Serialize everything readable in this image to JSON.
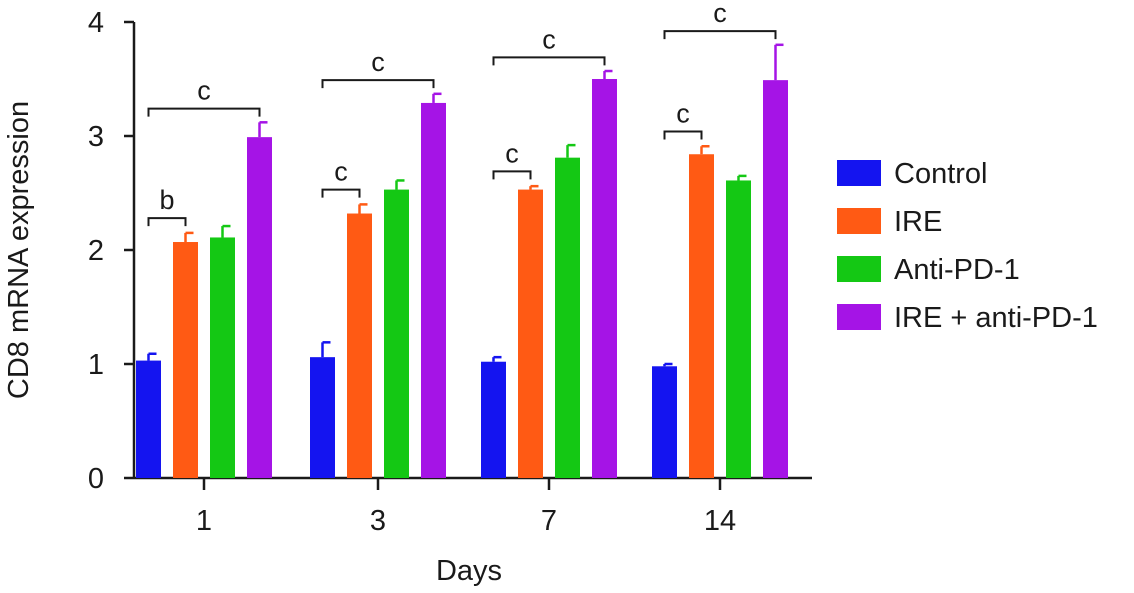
{
  "chart_data": {
    "type": "bar",
    "xlabel": "Days",
    "ylabel": "CD8 mRNA expression",
    "ylim": [
      0,
      4
    ],
    "yticks": [
      "0",
      "1",
      "2",
      "3",
      "4"
    ],
    "categories": [
      "1",
      "3",
      "7",
      "14"
    ],
    "series": [
      {
        "name": "Control",
        "color": "#1414f0",
        "values": [
          1.03,
          1.06,
          1.02,
          0.98
        ],
        "errors": [
          0.06,
          0.13,
          0.04,
          0.02
        ]
      },
      {
        "name": "IRE",
        "color": "#ff5a14",
        "values": [
          2.07,
          2.32,
          2.53,
          2.84
        ],
        "errors": [
          0.08,
          0.08,
          0.03,
          0.07
        ]
      },
      {
        "name": "Anti-PD-1",
        "color": "#14c814",
        "values": [
          2.11,
          2.53,
          2.81,
          2.61
        ],
        "errors": [
          0.1,
          0.08,
          0.11,
          0.04
        ]
      },
      {
        "name": "IRE + anti-PD-1",
        "color": "#a514e6",
        "values": [
          2.99,
          3.29,
          3.5,
          3.49
        ],
        "errors": [
          0.13,
          0.08,
          0.07,
          0.31
        ]
      }
    ],
    "significance": [
      {
        "category": 0,
        "from_series": 0,
        "to_series": 1,
        "label": "b"
      },
      {
        "category": 0,
        "from_series": 0,
        "to_series": 3,
        "label": "c"
      },
      {
        "category": 1,
        "from_series": 0,
        "to_series": 1,
        "label": "c"
      },
      {
        "category": 1,
        "from_series": 0,
        "to_series": 3,
        "label": "c"
      },
      {
        "category": 2,
        "from_series": 0,
        "to_series": 1,
        "label": "c"
      },
      {
        "category": 2,
        "from_series": 0,
        "to_series": 3,
        "label": "c"
      },
      {
        "category": 3,
        "from_series": 0,
        "to_series": 1,
        "label": "c"
      },
      {
        "category": 3,
        "from_series": 0,
        "to_series": 3,
        "label": "c"
      }
    ],
    "legend_position": "right",
    "grid": false
  }
}
